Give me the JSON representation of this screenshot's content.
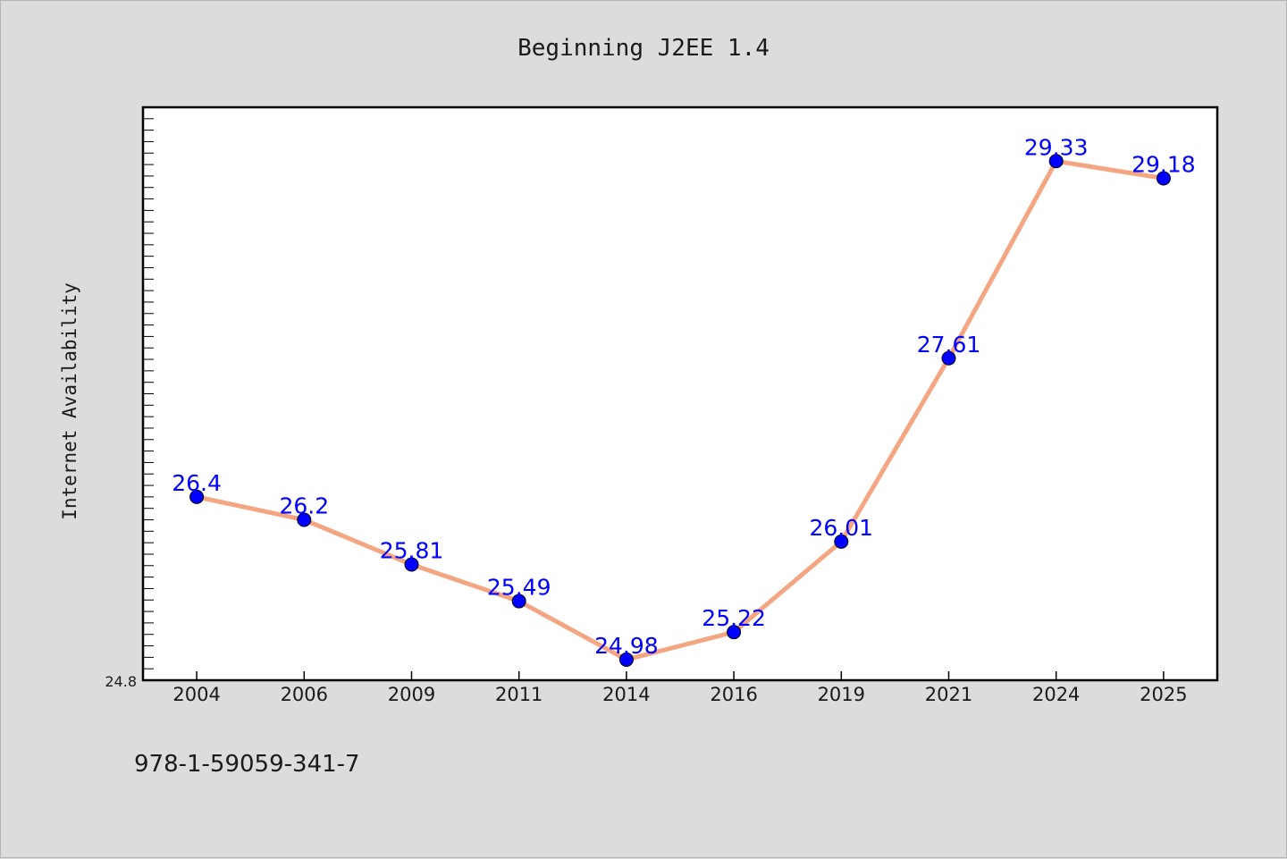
{
  "chart_data": {
    "type": "line",
    "title": "Beginning J2EE 1.4",
    "ylabel": "Internet Availability",
    "xlabel": "",
    "categories": [
      "2004",
      "2006",
      "2009",
      "2011",
      "2014",
      "2016",
      "2019",
      "2021",
      "2024",
      "2025"
    ],
    "values": [
      26.4,
      26.2,
      25.81,
      25.49,
      24.98,
      25.22,
      26.01,
      27.61,
      29.33,
      29.18
    ],
    "data_labels": [
      "26.4",
      "26.2",
      "25.81",
      "25.49",
      "24.98",
      "25.22",
      "26.01",
      "27.61",
      "29.33",
      "29.18"
    ],
    "ytick_labels": [
      "24.8"
    ],
    "ylim": [
      24.8,
      29.8
    ],
    "grid": false,
    "line_color": "#f4a582",
    "marker_color": "#0000ff",
    "label_color": "#0000ff"
  },
  "footer_text": "978-1-59059-341-7"
}
